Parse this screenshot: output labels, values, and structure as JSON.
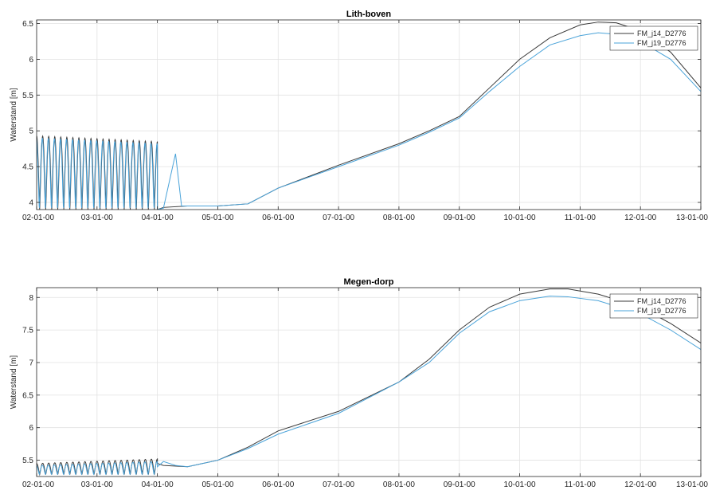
{
  "chart_data": [
    {
      "type": "line",
      "title": "Lith-boven",
      "xlabel": "",
      "ylabel": "Waterstand [m]",
      "xlim": [
        0,
        11
      ],
      "ylim": [
        3.9,
        6.55
      ],
      "x_tick_labels": [
        "02-01-00",
        "03-01-00",
        "04-01-00",
        "05-01-00",
        "06-01-00",
        "07-01-00",
        "08-01-00",
        "09-01-00",
        "10-01-00",
        "11-01-00",
        "12-01-00",
        "13-01-00"
      ],
      "y_ticks": [
        4,
        4.5,
        5,
        5.5,
        6,
        6.5
      ],
      "y_tick_labels": [
        "4",
        "4.5",
        "5",
        "5.5",
        "6",
        "6.5"
      ],
      "grid": true,
      "legend_position": "top-right",
      "series": [
        {
          "name": "FM_j14_D2776",
          "color": "#3a3a3a",
          "oscillation": {
            "x_start": 0,
            "x_end": 2.0,
            "cycles": 20,
            "y_low": 3.9,
            "y_high": 4.93,
            "y_high_end": 4.85
          },
          "points": [
            [
              2.0,
              3.9
            ],
            [
              2.1,
              3.93
            ],
            [
              2.5,
              3.95
            ],
            [
              3.0,
              3.95
            ],
            [
              3.5,
              3.98
            ],
            [
              4.0,
              4.2
            ],
            [
              5.0,
              4.52
            ],
            [
              6.0,
              4.82
            ],
            [
              6.5,
              5.0
            ],
            [
              7.0,
              5.2
            ],
            [
              7.5,
              5.6
            ],
            [
              8.0,
              6.0
            ],
            [
              8.5,
              6.3
            ],
            [
              9.0,
              6.48
            ],
            [
              9.3,
              6.52
            ],
            [
              9.6,
              6.51
            ],
            [
              10.0,
              6.4
            ],
            [
              10.5,
              6.1
            ],
            [
              11.0,
              5.6
            ],
            [
              11.5,
              5.0
            ]
          ]
        },
        {
          "name": "FM_j19_D2776",
          "color": "#4aa3d9",
          "oscillation": {
            "x_start": 0,
            "x_end": 2.0,
            "cycles": 20,
            "y_low": 3.9,
            "y_high": 4.9,
            "y_high_end": 4.82
          },
          "points": [
            [
              2.0,
              3.9
            ],
            [
              2.1,
              3.92
            ],
            [
              2.2,
              4.3
            ],
            [
              2.3,
              4.68
            ],
            [
              2.4,
              3.95
            ],
            [
              2.5,
              3.95
            ],
            [
              3.0,
              3.95
            ],
            [
              3.5,
              3.98
            ],
            [
              4.0,
              4.2
            ],
            [
              5.0,
              4.5
            ],
            [
              6.0,
              4.8
            ],
            [
              6.5,
              4.98
            ],
            [
              7.0,
              5.18
            ],
            [
              7.5,
              5.55
            ],
            [
              8.0,
              5.9
            ],
            [
              8.5,
              6.2
            ],
            [
              9.0,
              6.33
            ],
            [
              9.3,
              6.37
            ],
            [
              9.6,
              6.35
            ],
            [
              10.0,
              6.25
            ],
            [
              10.5,
              6.0
            ],
            [
              11.0,
              5.55
            ],
            [
              11.5,
              5.03
            ]
          ]
        }
      ]
    },
    {
      "type": "line",
      "title": "Megen-dorp",
      "xlabel": "",
      "ylabel": "Waterstand [m]",
      "xlim": [
        0,
        11
      ],
      "ylim": [
        5.25,
        8.15
      ],
      "x_tick_labels": [
        "02-01-00",
        "03-01-00",
        "04-01-00",
        "05-01-00",
        "06-01-00",
        "07-01-00",
        "08-01-00",
        "09-01-00",
        "10-01-00",
        "11-01-00",
        "12-01-00",
        "13-01-00"
      ],
      "y_ticks": [
        5.5,
        6,
        6.5,
        7,
        7.5,
        8
      ],
      "y_tick_labels": [
        "5.5",
        "6",
        "6.5",
        "7",
        "7.5",
        "8"
      ],
      "grid": true,
      "legend_position": "top-right",
      "series": [
        {
          "name": "FM_j14_D2776",
          "color": "#3a3a3a",
          "oscillation": {
            "x_start": 0,
            "x_end": 2.0,
            "cycles": 20,
            "y_low": 5.28,
            "y_high": 5.45,
            "y_high_end": 5.52
          },
          "points": [
            [
              2.0,
              5.45
            ],
            [
              2.1,
              5.42
            ],
            [
              2.5,
              5.4
            ],
            [
              3.0,
              5.5
            ],
            [
              3.5,
              5.7
            ],
            [
              4.0,
              5.95
            ],
            [
              5.0,
              6.25
            ],
            [
              6.0,
              6.7
            ],
            [
              6.5,
              7.05
            ],
            [
              7.0,
              7.5
            ],
            [
              7.5,
              7.85
            ],
            [
              8.0,
              8.05
            ],
            [
              8.5,
              8.13
            ],
            [
              8.8,
              8.13
            ],
            [
              9.3,
              8.05
            ],
            [
              10.0,
              7.85
            ],
            [
              10.5,
              7.6
            ],
            [
              11.0,
              7.3
            ],
            [
              11.5,
              6.5
            ]
          ]
        },
        {
          "name": "FM_j19_D2776",
          "color": "#4aa3d9",
          "oscillation": {
            "x_start": 0,
            "x_end": 2.0,
            "cycles": 20,
            "y_low": 5.28,
            "y_high": 5.42,
            "y_high_end": 5.48
          },
          "points": [
            [
              2.0,
              5.4
            ],
            [
              2.1,
              5.48
            ],
            [
              2.3,
              5.42
            ],
            [
              2.5,
              5.4
            ],
            [
              3.0,
              5.5
            ],
            [
              3.5,
              5.68
            ],
            [
              4.0,
              5.9
            ],
            [
              5.0,
              6.22
            ],
            [
              6.0,
              6.7
            ],
            [
              6.5,
              7.0
            ],
            [
              7.0,
              7.45
            ],
            [
              7.5,
              7.78
            ],
            [
              8.0,
              7.95
            ],
            [
              8.5,
              8.02
            ],
            [
              8.8,
              8.01
            ],
            [
              9.3,
              7.95
            ],
            [
              10.0,
              7.75
            ],
            [
              10.5,
              7.5
            ],
            [
              11.0,
              7.2
            ],
            [
              11.5,
              6.48
            ]
          ]
        }
      ]
    }
  ]
}
